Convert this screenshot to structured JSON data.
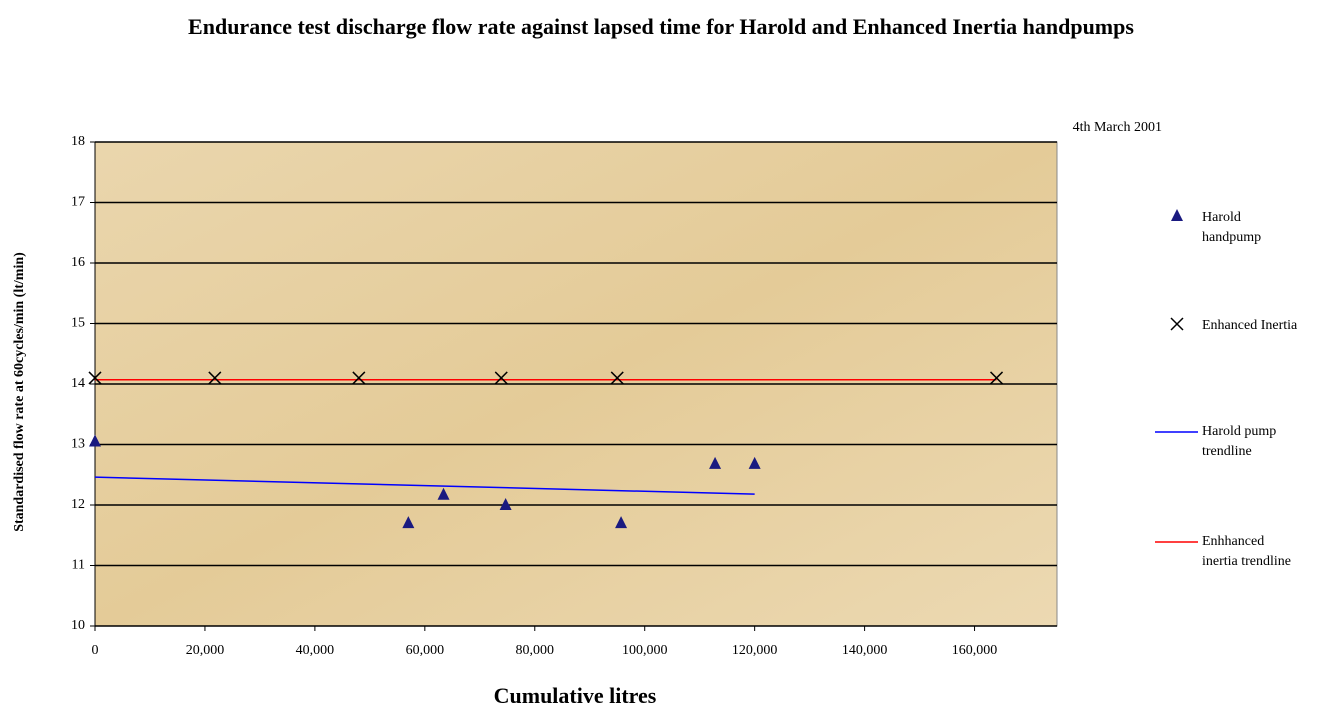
{
  "chart_data": {
    "type": "scatter",
    "title": "Endurance test discharge flow rate against lapsed time for Harold and Enhanced Inertia handpumps",
    "subtitle": "4th March 2001",
    "x_label": "Cumulative litres",
    "y_label": "Standardised flow rate at 60cycles/min (lt/min)",
    "xlim": [
      0,
      175000
    ],
    "ylim": [
      10,
      18
    ],
    "xticks": [
      0,
      {
        "value": 20000,
        "label": "20,000"
      },
      {
        "value": 40000,
        "label": "40,000"
      },
      {
        "value": 60000,
        "label": "60,000"
      },
      {
        "value": 80000,
        "label": "80,000"
      },
      {
        "value": 100000,
        "label": "100,000"
      },
      {
        "value": 120000,
        "label": "120,000"
      },
      {
        "value": 140000,
        "label": "140,000"
      },
      {
        "value": 160000,
        "label": "160,000"
      }
    ],
    "yticks": [
      10,
      11,
      12,
      13,
      14,
      15,
      16,
      17,
      18
    ],
    "grid": true,
    "legend": "right",
    "series": [
      {
        "name": "Harold handpump",
        "color": "#1a1a80",
        "marker": "triangle",
        "x": [
          0,
          57000,
          63400,
          74700,
          95700,
          112800,
          120000
        ],
        "values": [
          13.05,
          11.7,
          12.17,
          12.0,
          11.7,
          12.68,
          12.68
        ]
      },
      {
        "name": "Enhanced Inertia",
        "color": "#000000",
        "marker": "x",
        "x": [
          0,
          21800,
          48000,
          73900,
          95000,
          164000
        ],
        "values": [
          14.1,
          14.1,
          14.1,
          14.1,
          14.1,
          14.1
        ]
      },
      {
        "name": "Harold pump trendline",
        "color": "#0000ff",
        "marker": "line",
        "x": [
          0,
          120000
        ],
        "values": [
          12.46,
          12.18
        ]
      },
      {
        "name": "Enhhanced inertia trendline",
        "color": "#ff0000",
        "marker": "line",
        "x": [
          0,
          164000
        ],
        "values": [
          14.07,
          14.07
        ]
      }
    ]
  }
}
